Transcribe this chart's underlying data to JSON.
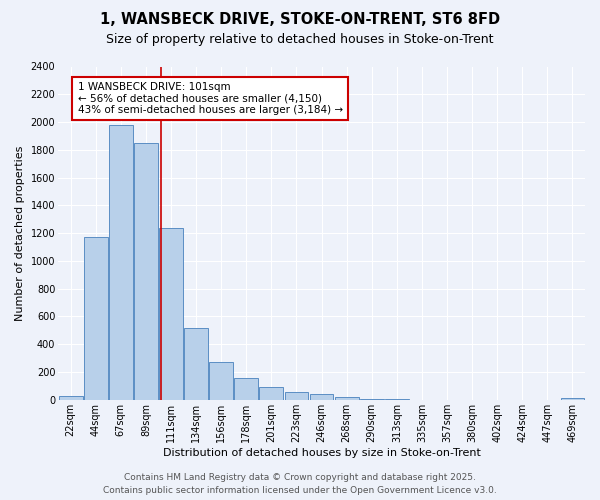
{
  "title_line1": "1, WANSBECK DRIVE, STOKE-ON-TRENT, ST6 8FD",
  "title_line2": "Size of property relative to detached houses in Stoke-on-Trent",
  "xlabel": "Distribution of detached houses by size in Stoke-on-Trent",
  "ylabel": "Number of detached properties",
  "bar_labels": [
    "22sqm",
    "44sqm",
    "67sqm",
    "89sqm",
    "111sqm",
    "134sqm",
    "156sqm",
    "178sqm",
    "201sqm",
    "223sqm",
    "246sqm",
    "268sqm",
    "290sqm",
    "313sqm",
    "335sqm",
    "357sqm",
    "380sqm",
    "402sqm",
    "424sqm",
    "447sqm",
    "469sqm"
  ],
  "bar_values": [
    25,
    1170,
    1980,
    1850,
    1240,
    520,
    270,
    155,
    90,
    55,
    45,
    20,
    8,
    3,
    2,
    1,
    1,
    1,
    1,
    1,
    10
  ],
  "bar_color": "#b8d0ea",
  "bar_edge_color": "#5b8ec4",
  "background_color": "#eef2fa",
  "grid_color": "#ffffff",
  "vline_color": "#cc0000",
  "vline_x": 3.6,
  "annotation_text": "1 WANSBECK DRIVE: 101sqm\n← 56% of detached houses are smaller (4,150)\n43% of semi-detached houses are larger (3,184) →",
  "annotation_box_color": "#ffffff",
  "annotation_box_edge": "#cc0000",
  "ylim": [
    0,
    2400
  ],
  "yticks": [
    0,
    200,
    400,
    600,
    800,
    1000,
    1200,
    1400,
    1600,
    1800,
    2000,
    2200,
    2400
  ],
  "footer_line1": "Contains HM Land Registry data © Crown copyright and database right 2025.",
  "footer_line2": "Contains public sector information licensed under the Open Government Licence v3.0.",
  "title_fontsize": 10.5,
  "subtitle_fontsize": 9,
  "axis_label_fontsize": 8,
  "tick_fontsize": 7,
  "annotation_fontsize": 7.5,
  "footer_fontsize": 6.5
}
